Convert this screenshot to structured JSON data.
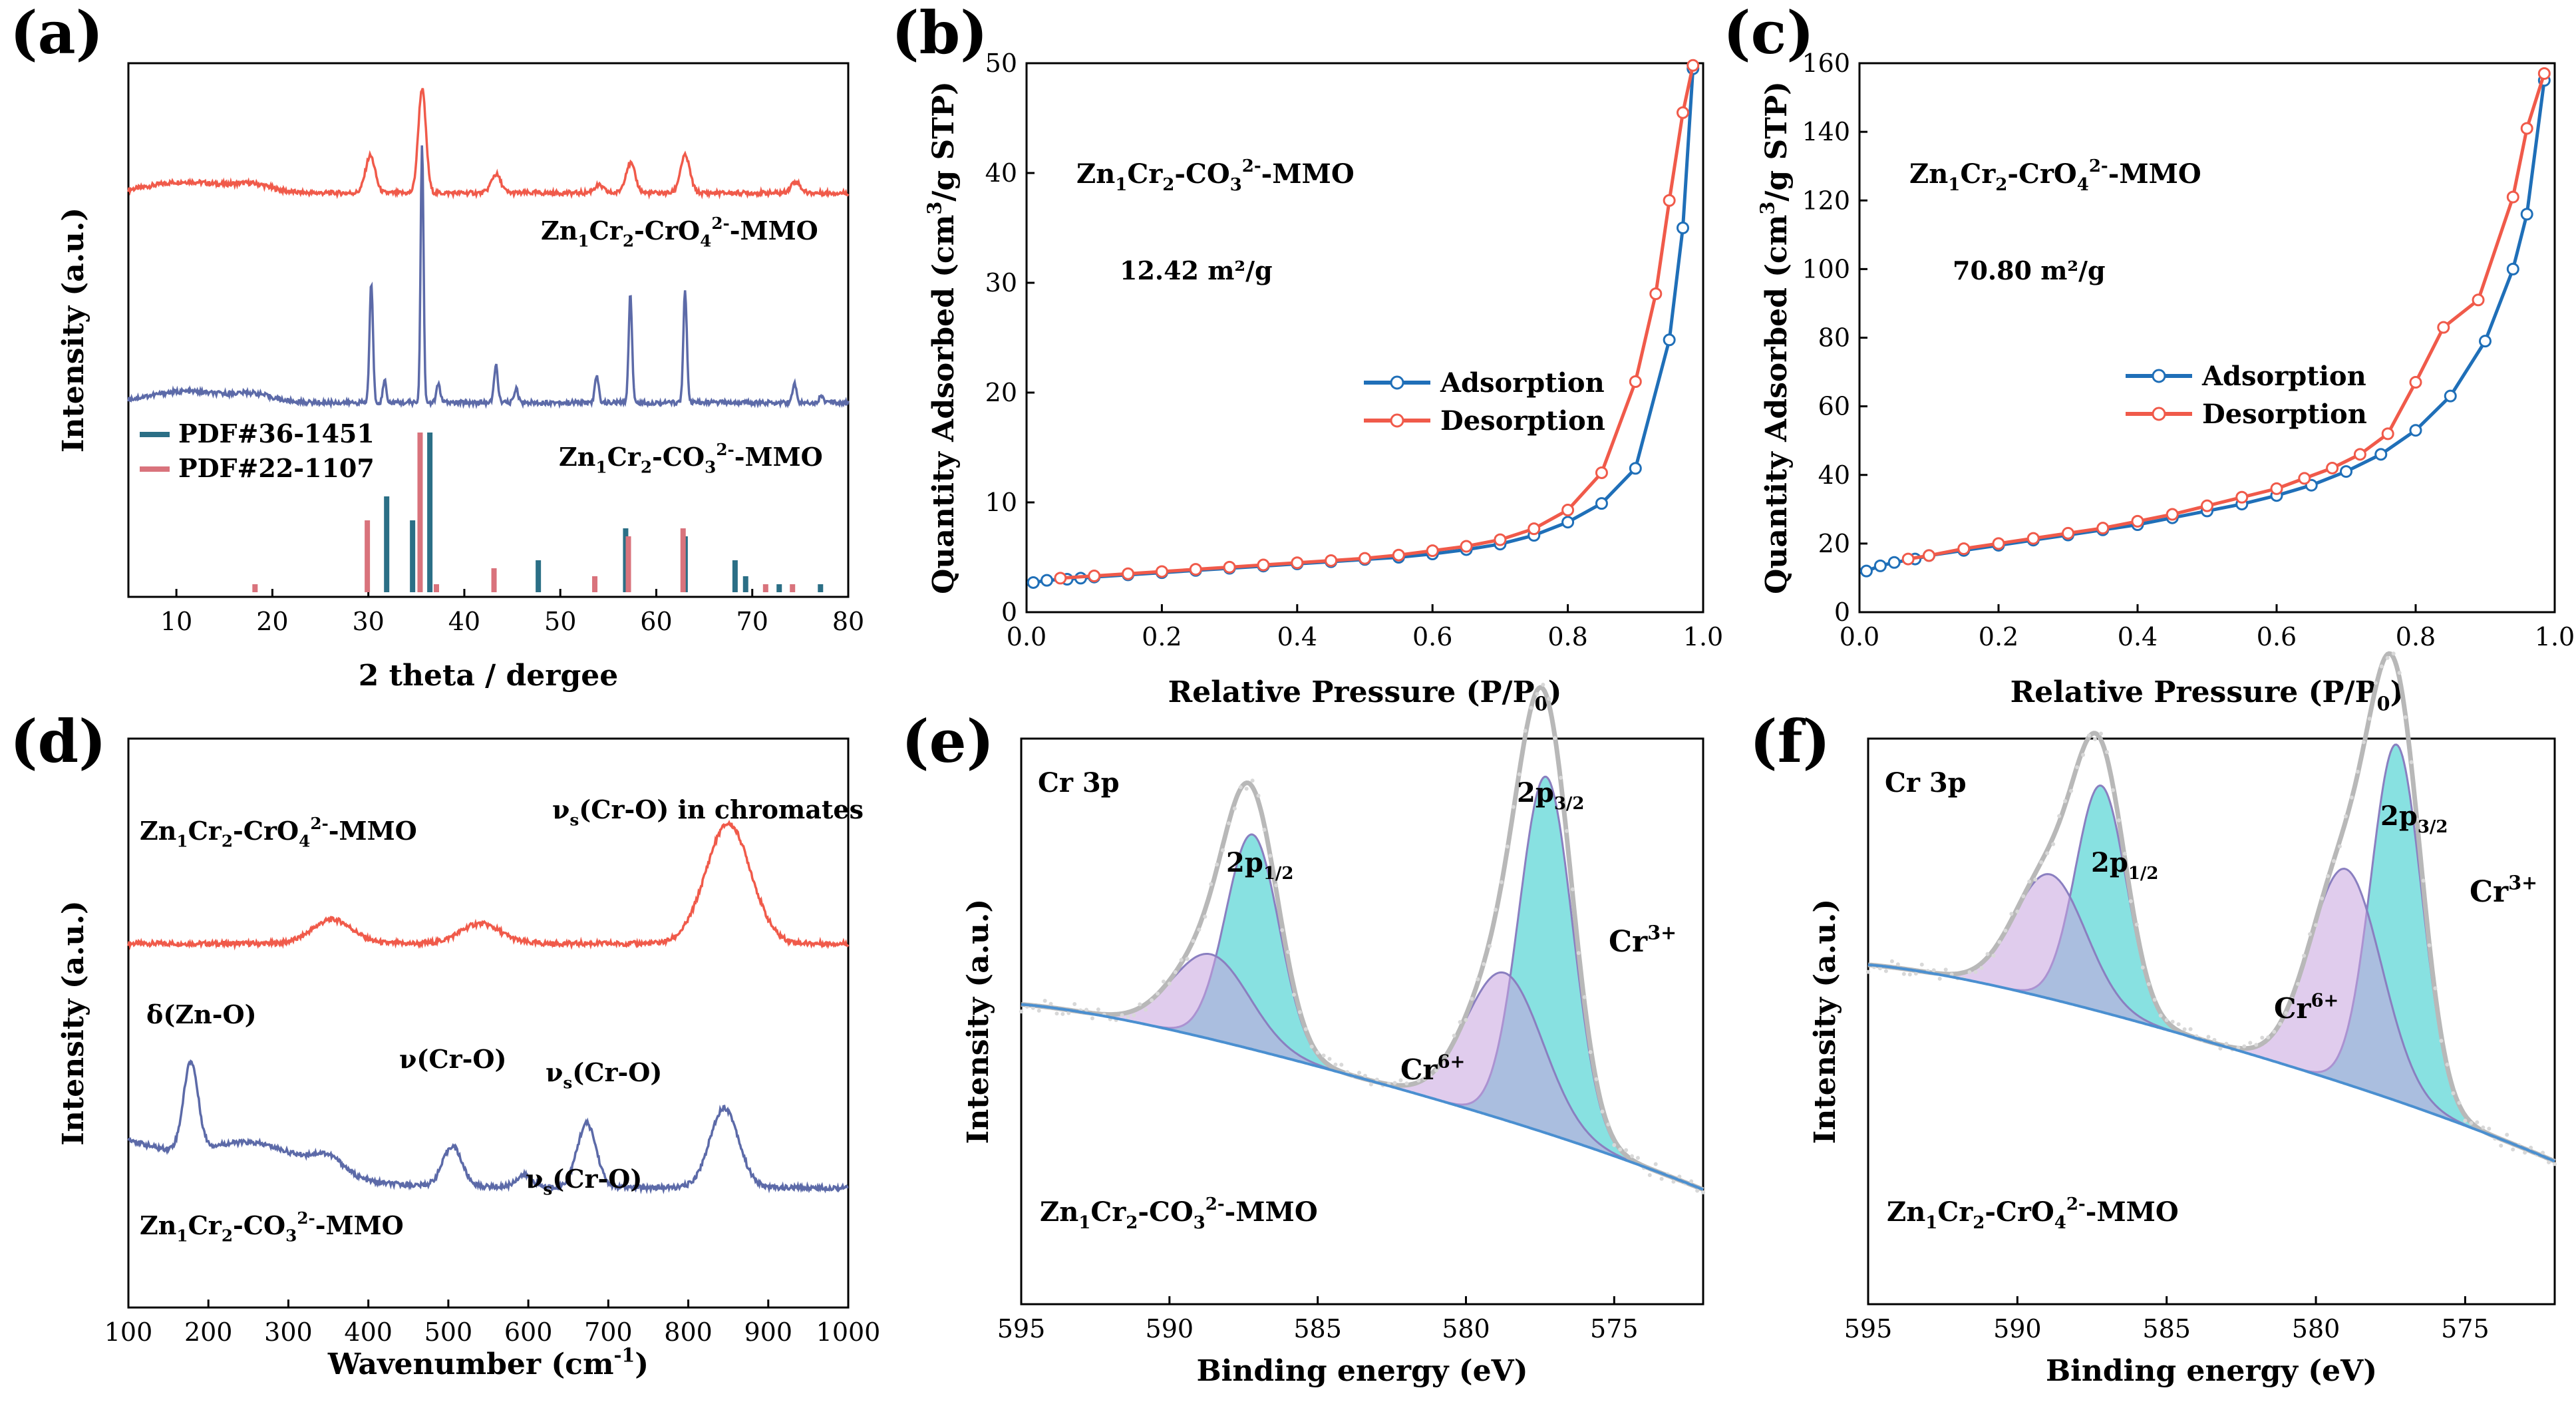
{
  "colors": {
    "red": "#f05a4a",
    "blue": "#5c6aa8",
    "teal": "#2b6f86",
    "pink": "#d9737c",
    "ads": "#1f6fb8",
    "cyan": "#26c8c8",
    "purple": "#c7a3df",
    "gray": "#b8b8b8",
    "label_blue": "#2f8fcf",
    "label_purple": "#8a6fd0"
  },
  "chart_data": [
    {
      "id": "a",
      "type": "line",
      "panel_label": "(a)",
      "xlabel": "2 theta / dergee",
      "ylabel": "Intensity (a.u.)",
      "xlim": [
        5,
        80
      ],
      "xticks": [
        "10",
        "20",
        "30",
        "40",
        "50",
        "60",
        "70",
        "80"
      ],
      "series": [
        {
          "name": "Zn₁Cr₂-CrO₄²⁻-MMO",
          "name_parts": [
            "Zn",
            "1",
            "Cr",
            "2",
            "-CrO",
            "4",
            "2-",
            "-MMO"
          ],
          "color": "#f05a4a",
          "peaks": [
            [
              30.2,
              0.1,
              0.5
            ],
            [
              35.6,
              0.28,
              0.4
            ],
            [
              43.3,
              0.05,
              0.5
            ],
            [
              57.3,
              0.08,
              0.5
            ],
            [
              63.0,
              0.1,
              0.5
            ],
            [
              54.0,
              0.02,
              0.5
            ],
            [
              74.5,
              0.03,
              0.5
            ]
          ]
        },
        {
          "name": "Zn₁Cr₂-CO₃²⁻-MMO",
          "name_parts": [
            "Zn",
            "1",
            "Cr",
            "2",
            "-CO",
            "3",
            "2-",
            "-MMO"
          ],
          "color": "#5c6aa8",
          "peaks": [
            [
              30.3,
              0.32,
              0.18
            ],
            [
              31.7,
              0.06,
              0.18
            ],
            [
              35.6,
              0.7,
              0.15
            ],
            [
              37.3,
              0.05,
              0.2
            ],
            [
              43.3,
              0.1,
              0.2
            ],
            [
              45.4,
              0.04,
              0.2
            ],
            [
              53.8,
              0.07,
              0.2
            ],
            [
              57.3,
              0.29,
              0.18
            ],
            [
              63.0,
              0.3,
              0.18
            ],
            [
              74.4,
              0.05,
              0.2
            ],
            [
              77.2,
              0.02,
              0.2
            ]
          ]
        }
      ],
      "reference_patterns": [
        {
          "name": "PDF#36-1451",
          "color": "#2b6f86",
          "lines": [
            [
              31.7,
              0.12
            ],
            [
              34.4,
              0.09
            ],
            [
              36.2,
              0.2
            ],
            [
              47.5,
              0.04
            ],
            [
              56.6,
              0.08
            ],
            [
              62.8,
              0.07
            ],
            [
              68.0,
              0.04
            ],
            [
              69.1,
              0.02
            ],
            [
              72.6,
              0.01
            ],
            [
              76.9,
              0.01
            ]
          ]
        },
        {
          "name": "PDF#22-1107",
          "color": "#d9737c",
          "lines": [
            [
              18.4,
              0.01
            ],
            [
              30.1,
              0.09
            ],
            [
              35.6,
              0.2
            ],
            [
              37.3,
              0.01
            ],
            [
              43.3,
              0.03
            ],
            [
              53.8,
              0.02
            ],
            [
              57.3,
              0.07
            ],
            [
              63.0,
              0.08
            ],
            [
              71.6,
              0.01
            ],
            [
              74.4,
              0.01
            ]
          ]
        }
      ]
    },
    {
      "id": "b",
      "type": "line",
      "panel_label": "(b)",
      "xlabel_parts": [
        "Relative Pressure (P/P",
        "0",
        ")"
      ],
      "ylabel_parts": [
        "Quantity Adsorbed (cm",
        "3",
        "/g STP)"
      ],
      "xlim": [
        0,
        1.0
      ],
      "ylim": [
        0,
        50
      ],
      "xticks": [
        "0.0",
        "0.2",
        "0.4",
        "0.6",
        "0.8",
        "1.0"
      ],
      "yticks": [
        "0",
        "10",
        "20",
        "30",
        "40",
        "50"
      ],
      "annotation_parts": [
        "Zn",
        "1",
        "Cr",
        "2",
        "-CO",
        "3",
        "2-",
        "-MMO"
      ],
      "surface_area": "12.42 m²/g",
      "series": [
        {
          "name": "Adsorption",
          "color": "#1f6fb8",
          "x": [
            0.01,
            0.03,
            0.06,
            0.08,
            0.1,
            0.15,
            0.2,
            0.25,
            0.3,
            0.35,
            0.4,
            0.45,
            0.5,
            0.55,
            0.6,
            0.65,
            0.7,
            0.75,
            0.8,
            0.85,
            0.9,
            0.95,
            0.97,
            0.985
          ],
          "y": [
            2.7,
            2.9,
            3.0,
            3.1,
            3.2,
            3.4,
            3.6,
            3.8,
            4.0,
            4.2,
            4.4,
            4.6,
            4.8,
            5.0,
            5.3,
            5.7,
            6.2,
            7.0,
            8.2,
            9.9,
            13.1,
            24.8,
            35.0,
            49.5
          ]
        },
        {
          "name": "Desorption",
          "color": "#f05a4a",
          "x": [
            0.985,
            0.97,
            0.95,
            0.93,
            0.9,
            0.85,
            0.8,
            0.75,
            0.7,
            0.65,
            0.6,
            0.55,
            0.5,
            0.45,
            0.4,
            0.35,
            0.3,
            0.25,
            0.2,
            0.15,
            0.1,
            0.05
          ],
          "y": [
            49.8,
            45.5,
            37.5,
            29.0,
            21.0,
            12.7,
            9.3,
            7.6,
            6.6,
            6.0,
            5.6,
            5.2,
            4.9,
            4.7,
            4.5,
            4.3,
            4.1,
            3.9,
            3.7,
            3.5,
            3.3,
            3.1
          ]
        }
      ]
    },
    {
      "id": "c",
      "type": "line",
      "panel_label": "(c)",
      "xlabel_parts": [
        "Relative Pressure (P/P",
        "0",
        ")"
      ],
      "ylabel_parts": [
        "Quantity Adsorbed (cm",
        "3",
        "/g STP)"
      ],
      "xlim": [
        0,
        1.0
      ],
      "ylim": [
        0,
        160
      ],
      "xticks": [
        "0.0",
        "0.2",
        "0.4",
        "0.6",
        "0.8",
        "1.0"
      ],
      "yticks": [
        "0",
        "20",
        "40",
        "60",
        "80",
        "100",
        "120",
        "140",
        "160"
      ],
      "annotation_parts": [
        "Zn",
        "1",
        "Cr",
        "2",
        "-CrO",
        "4",
        "2-",
        "-MMO"
      ],
      "surface_area": "70.80 m²/g",
      "series": [
        {
          "name": "Adsorption",
          "color": "#1f6fb8",
          "x": [
            0.01,
            0.03,
            0.05,
            0.08,
            0.1,
            0.15,
            0.2,
            0.25,
            0.3,
            0.35,
            0.4,
            0.45,
            0.5,
            0.55,
            0.6,
            0.65,
            0.7,
            0.75,
            0.8,
            0.85,
            0.9,
            0.94,
            0.96,
            0.985
          ],
          "y": [
            12.0,
            13.5,
            14.5,
            15.5,
            16.5,
            18.0,
            19.5,
            21.0,
            22.5,
            24.0,
            25.5,
            27.5,
            29.5,
            31.5,
            34.0,
            37.0,
            41.0,
            46.0,
            53.0,
            63.0,
            79.0,
            100.0,
            116.0,
            155.0
          ]
        },
        {
          "name": "Desorption",
          "color": "#f05a4a",
          "x": [
            0.985,
            0.96,
            0.94,
            0.89,
            0.84,
            0.8,
            0.76,
            0.72,
            0.68,
            0.64,
            0.6,
            0.55,
            0.5,
            0.45,
            0.4,
            0.35,
            0.3,
            0.25,
            0.2,
            0.15,
            0.1,
            0.07
          ],
          "y": [
            157.0,
            141.0,
            121.0,
            91.0,
            83.0,
            67.0,
            52.0,
            46.0,
            42.0,
            39.0,
            36.0,
            33.5,
            31.0,
            28.5,
            26.5,
            24.5,
            23.0,
            21.5,
            20.0,
            18.5,
            16.5,
            15.5
          ]
        }
      ]
    },
    {
      "id": "d",
      "type": "line",
      "panel_label": "(d)",
      "xlabel": "Wavenumber (cm",
      "xlabel_sup": "-1",
      "xlabel_end": ")",
      "ylabel": "Intensity (a.u.)",
      "xlim": [
        100,
        1000
      ],
      "xticks": [
        "100",
        "200",
        "300",
        "400",
        "500",
        "600",
        "700",
        "800",
        "900",
        "1000"
      ],
      "series": [
        {
          "name": "Zn₁Cr₂-CrO₄²⁻-MMO",
          "name_parts": [
            "Zn",
            "1",
            "Cr",
            "2",
            "-CrO",
            "4",
            "2-",
            "-MMO"
          ],
          "color": "#f05a4a",
          "peaks": [
            [
              355,
              0.06,
              25
            ],
            [
              540,
              0.05,
              25
            ],
            [
              850,
              0.3,
              28
            ]
          ]
        },
        {
          "name": "Zn₁Cr₂-CO₃²⁻-MMO",
          "name_parts": [
            "Zn",
            "1",
            "Cr",
            "2",
            "-CO",
            "3",
            "2-",
            "-MMO"
          ],
          "color": "#5c6aa8",
          "peaks": [
            [
              178,
              0.22,
              9
            ],
            [
              350,
              0.04,
              20
            ],
            [
              505,
              0.1,
              12
            ],
            [
              595,
              0.03,
              10
            ],
            [
              673,
              0.16,
              12
            ],
            [
              845,
              0.2,
              18
            ]
          ]
        }
      ],
      "annotations": [
        {
          "base": "ν",
          "sub": "s",
          "rest": "(Cr-O) in chromates"
        },
        {
          "base": "δ(Zn-O)",
          "sub": "",
          "rest": ""
        },
        {
          "base": "ν(Cr-O)",
          "sub": "",
          "rest": ""
        },
        {
          "base": "ν",
          "sub": "s",
          "rest": "(Cr-O)"
        },
        {
          "base": "ν",
          "sub": "s",
          "rest": "(Cr-O)"
        }
      ]
    },
    {
      "id": "e",
      "type": "area",
      "panel_label": "(e)",
      "xlabel": "Binding energy (eV)",
      "ylabel": "Intensity (a.u.)",
      "xlim": [
        595,
        572
      ],
      "xticks": [
        "595",
        "590",
        "585",
        "580",
        "575"
      ],
      "core_level": "Cr 3p",
      "sample_parts": [
        "Zn",
        "1",
        "Cr",
        "2",
        "-CO",
        "3",
        "2-",
        "-MMO"
      ],
      "peak_labels": {
        "p12": [
          "2p",
          "1/2"
        ],
        "p32": [
          "2p",
          "3/2"
        ],
        "cr3": [
          "Cr",
          "3+"
        ],
        "cr6": [
          "Cr",
          "6+"
        ]
      },
      "components": [
        {
          "name": "Cr3+ 2p1/2",
          "center": 587.2,
          "height": 0.38,
          "width": 0.9,
          "color": "#26c8c8"
        },
        {
          "name": "Cr6+ 2p1/2",
          "center": 588.6,
          "height": 0.15,
          "width": 1.3,
          "color": "#c7a3df"
        },
        {
          "name": "Cr3+ 2p3/2",
          "center": 577.3,
          "height": 0.63,
          "width": 0.9,
          "color": "#26c8c8"
        },
        {
          "name": "Cr6+ 2p3/2",
          "center": 578.7,
          "height": 0.26,
          "width": 1.3,
          "color": "#c7a3df"
        }
      ],
      "background": [
        0.53,
        0.19
      ]
    },
    {
      "id": "f",
      "type": "area",
      "panel_label": "(f)",
      "xlabel": "Binding energy (eV)",
      "ylabel": "Intensity (a.u.)",
      "xlim": [
        595,
        572
      ],
      "xticks": [
        "595",
        "590",
        "585",
        "580",
        "575"
      ],
      "core_level": "Cr 3p",
      "sample_parts": [
        "Zn",
        "1",
        "Cr",
        "2",
        "-CrO",
        "4",
        "2-",
        "-MMO"
      ],
      "peak_labels": {
        "p12": [
          "2p",
          "1/2"
        ],
        "p32": [
          "2p",
          "3/2"
        ],
        "cr3": [
          "Cr",
          "3+"
        ],
        "cr6": [
          "Cr",
          "6+"
        ]
      },
      "components": [
        {
          "name": "Cr3+ 2p1/2",
          "center": 587.2,
          "height": 0.4,
          "width": 0.85,
          "color": "#26c8c8"
        },
        {
          "name": "Cr6+ 2p1/2",
          "center": 588.9,
          "height": 0.22,
          "width": 1.2,
          "color": "#c7a3df"
        },
        {
          "name": "Cr3+ 2p3/2",
          "center": 577.3,
          "height": 0.63,
          "width": 0.85,
          "color": "#26c8c8"
        },
        {
          "name": "Cr6+ 2p3/2",
          "center": 579.0,
          "height": 0.38,
          "width": 1.2,
          "color": "#c7a3df"
        }
      ],
      "background": [
        0.6,
        0.24
      ]
    }
  ]
}
